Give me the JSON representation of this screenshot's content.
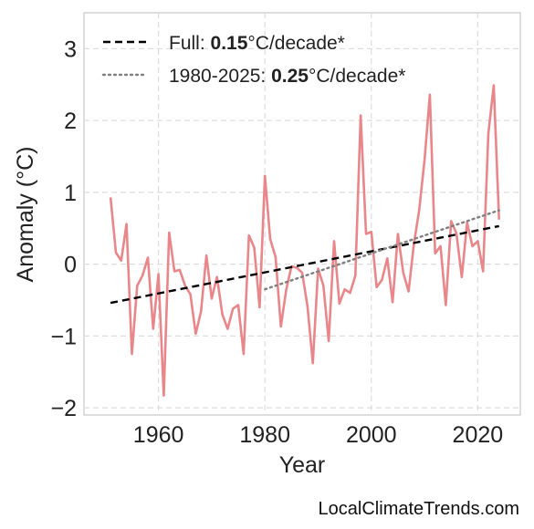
{
  "chart_data": {
    "type": "line",
    "xlabel": "Year",
    "ylabel": "Anomaly (°C)",
    "xlim": [
      1946,
      2028
    ],
    "ylim": [
      -2.1,
      3.5
    ],
    "x_ticks": [
      1960,
      1980,
      2000,
      2020
    ],
    "y_ticks": [
      -2,
      -1,
      0,
      1,
      2,
      3
    ],
    "y_tick_labels": [
      "−2",
      "−1",
      "0",
      "1",
      "2",
      "3"
    ],
    "grid": true,
    "legend_position": "top-left",
    "series": [
      {
        "kind": "observed",
        "color": "#e8868a",
        "x": [
          1951,
          1952,
          1953,
          1954,
          1955,
          1956,
          1957,
          1958,
          1959,
          1960,
          1961,
          1962,
          1963,
          1964,
          1965,
          1966,
          1967,
          1968,
          1969,
          1970,
          1971,
          1972,
          1973,
          1974,
          1975,
          1976,
          1977,
          1978,
          1979,
          1980,
          1981,
          1982,
          1983,
          1984,
          1985,
          1986,
          1987,
          1988,
          1989,
          1990,
          1991,
          1992,
          1993,
          1994,
          1995,
          1996,
          1997,
          1998,
          1999,
          2000,
          2001,
          2002,
          2003,
          2004,
          2005,
          2006,
          2007,
          2008,
          2009,
          2010,
          2011,
          2012,
          2013,
          2014,
          2015,
          2016,
          2017,
          2018,
          2019,
          2020,
          2021,
          2022,
          2023,
          2024
        ],
        "y": [
          0.93,
          0.16,
          0.05,
          0.56,
          -1.25,
          -0.3,
          -0.16,
          0.09,
          -0.9,
          -0.14,
          -1.83,
          0.44,
          -0.1,
          -0.08,
          -0.3,
          -0.42,
          -0.97,
          -0.66,
          0.12,
          -0.48,
          -0.18,
          -0.7,
          -0.9,
          -0.62,
          -0.57,
          -1.25,
          0.4,
          0.23,
          -0.6,
          1.23,
          0.35,
          0.1,
          -0.87,
          -0.36,
          -0.03,
          -0.05,
          -0.12,
          -0.58,
          -1.38,
          -0.06,
          -0.3,
          -1.07,
          0.32,
          -0.55,
          -0.35,
          -0.4,
          -0.16,
          2.07,
          0.42,
          0.45,
          -0.32,
          -0.22,
          0.08,
          -0.53,
          0.42,
          -0.12,
          -0.38,
          0.28,
          0.75,
          1.45,
          2.36,
          0.15,
          0.25,
          -0.57,
          0.6,
          0.43,
          -0.18,
          0.58,
          0.25,
          0.32,
          -0.1,
          1.82,
          2.49,
          0.62
        ]
      },
      {
        "name": "Full: 0.15°C/decade*",
        "kind": "trend",
        "color": "#000000",
        "style": "dashed",
        "x": [
          1951,
          2024
        ],
        "y": [
          -0.54,
          0.53
        ]
      },
      {
        "name": "1980-2025: 0.25°C/decade*",
        "kind": "trend",
        "color": "#808080",
        "style": "dotted",
        "x": [
          1980,
          2024
        ],
        "y": [
          -0.35,
          0.75
        ]
      }
    ],
    "legend": [
      {
        "prefix": "Full: ",
        "bold": "0.15",
        "suffix": "°C/decade*"
      },
      {
        "prefix": "1980-2025: ",
        "bold": "0.25",
        "suffix": "°C/decade*"
      }
    ]
  },
  "credit": "LocalClimateTrends.com"
}
